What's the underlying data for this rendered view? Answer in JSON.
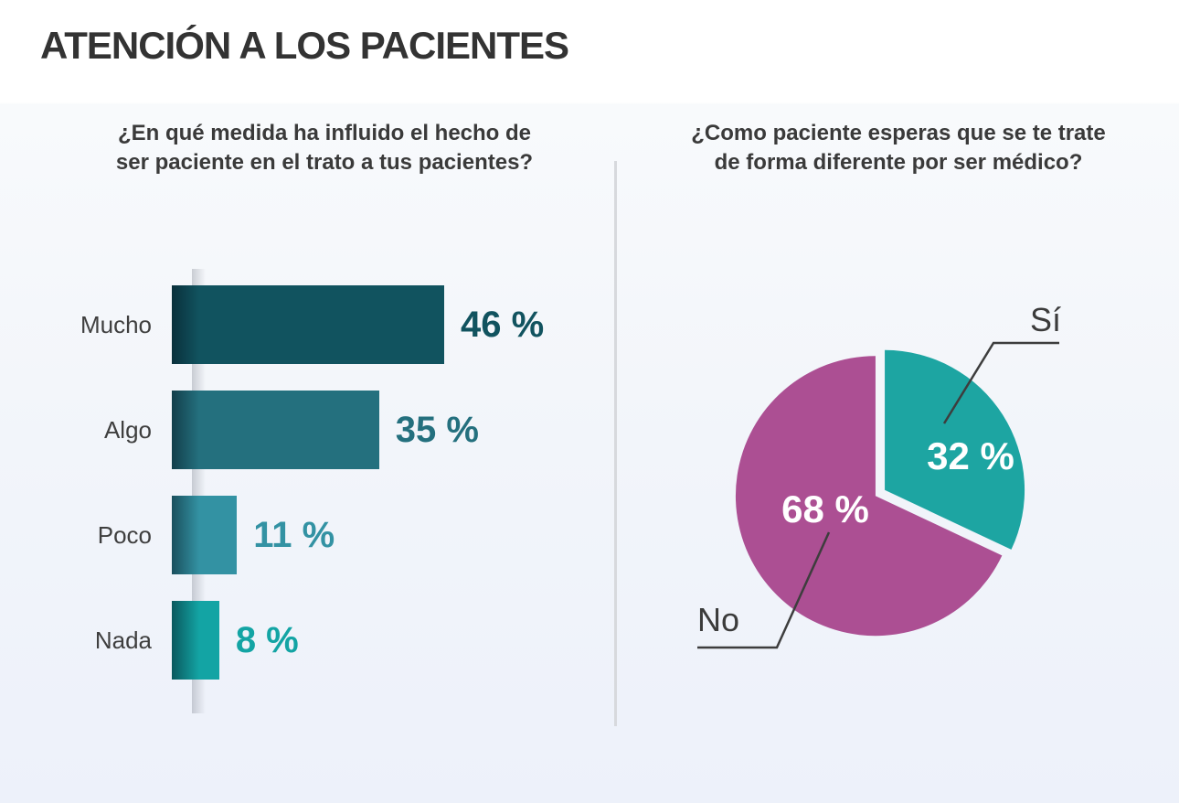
{
  "title": "ATENCIÓN A LOS PACIENTES",
  "chart_data": [
    {
      "type": "bar",
      "orientation": "horizontal",
      "question": "¿En qué medida ha influido el hecho de ser paciente en el trato a tus pacientes?",
      "question_lines": [
        "¿En qué medida ha influido el hecho de",
        "ser paciente en el trato a tus pacientes?"
      ],
      "categories": [
        "Mucho",
        "Algo",
        "Poco",
        "Nada"
      ],
      "values": [
        46,
        35,
        11,
        8
      ],
      "value_labels": [
        "46 %",
        "35 %",
        "11 %",
        "8 %"
      ],
      "bar_colors": [
        "#11535f",
        "#24707e",
        "#3392a3",
        "#13a4a4"
      ],
      "unit": "%",
      "xlim": [
        0,
        50
      ],
      "grid": false,
      "legend": false
    },
    {
      "type": "pie",
      "question": "¿Como paciente esperas que se te trate de forma diferente por ser médico?",
      "question_lines": [
        "¿Como paciente esperas que se te trate",
        "de forma diferente por ser médico?"
      ],
      "slices": [
        {
          "label": "Sí",
          "value": 32,
          "display": "32 %",
          "color": "#1da5a2"
        },
        {
          "label": "No",
          "value": 68,
          "display": "68 %",
          "color": "#ac4f93"
        }
      ],
      "start_angle_deg": 0,
      "direction": "clockwise",
      "exploded": true,
      "slice_label_color": "#ffffff",
      "legend": false
    }
  ],
  "styles": {
    "title_color": "#333333",
    "question_color": "#3a3a3a",
    "category_label_color": "#3f3f3f",
    "leader_line_color": "#3d3d3d",
    "leader_text_color": "#3b3b3b",
    "divider_color": "#d7d9dd",
    "background_top": "#ffffff",
    "background_bottom": "#edf1fa"
  }
}
